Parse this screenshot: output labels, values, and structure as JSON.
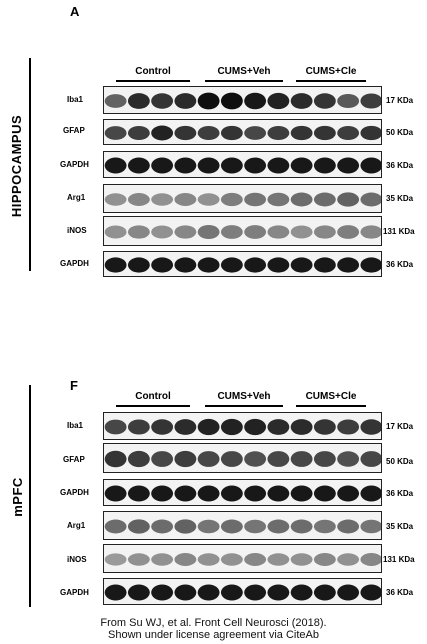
{
  "panels": [
    {
      "letter": "A",
      "region": "HIPPOCAMPUS",
      "groups": [
        "Control",
        "CUMS+Veh",
        "CUMS+Cle"
      ],
      "rows": [
        {
          "label": "Iba1",
          "size": "17 KDa"
        },
        {
          "label": "GFAP",
          "size": "50 KDa"
        },
        {
          "label": "GAPDH",
          "size": "36 KDa"
        },
        {
          "label": "Arg1",
          "size": "35 KDa"
        },
        {
          "label": "iNOS",
          "size": "131 KDa"
        },
        {
          "label": "GAPDH",
          "size": "36 KDa"
        }
      ]
    },
    {
      "letter": "F",
      "region": "mPFC",
      "groups": [
        "Control",
        "CUMS+Veh",
        "CUMS+Cle"
      ],
      "rows": [
        {
          "label": "Iba1",
          "size": "17 KDa"
        },
        {
          "label": "GFAP",
          "size": "50 KDa"
        },
        {
          "label": "GAPDH",
          "size": "36 KDa"
        },
        {
          "label": "Arg1",
          "size": "35 KDa"
        },
        {
          "label": "iNOS",
          "size": "131 KDa"
        },
        {
          "label": "GAPDH",
          "size": "36 KDa"
        }
      ]
    }
  ],
  "footer": {
    "line1": "From Su WJ, et al. Front Cell Neurosci (2018).",
    "line2": "Shown under license agreement via CiteAb"
  }
}
